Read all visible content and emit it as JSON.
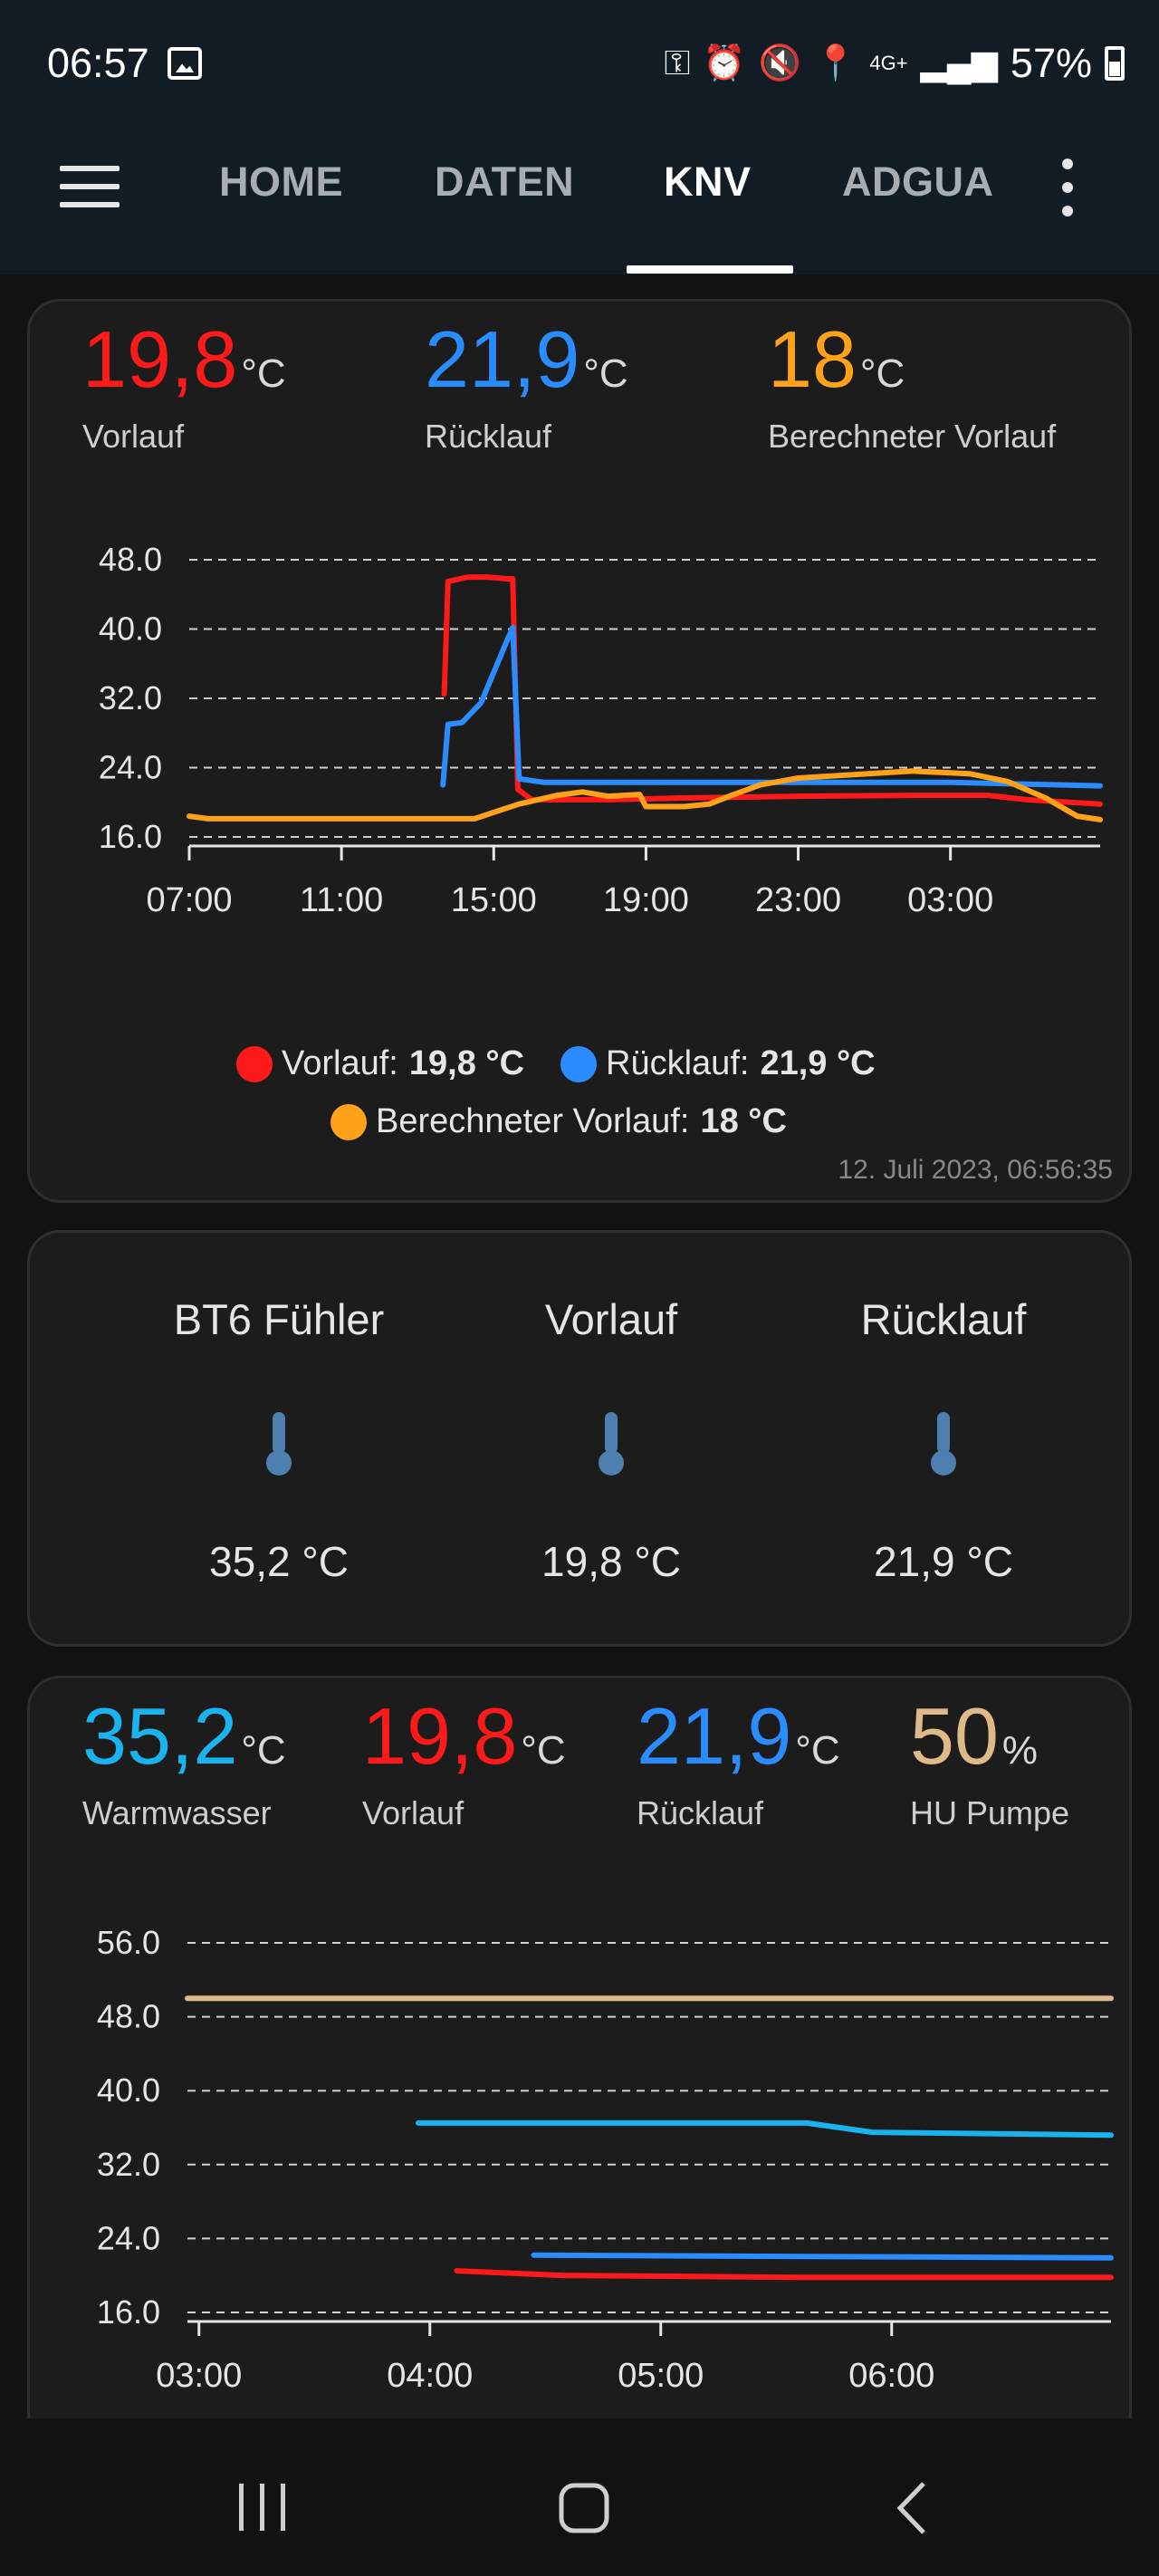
{
  "status_bar": {
    "time": "06:57",
    "icons": [
      "image-icon",
      "key-icon",
      "alarm-icon",
      "mute-icon",
      "location-icon",
      "signal-icon",
      "battery-icon"
    ],
    "network": "4G+",
    "battery": "57%"
  },
  "nav": {
    "tabs": [
      {
        "label": "HOME",
        "active": false
      },
      {
        "label": "DATEN",
        "active": false
      },
      {
        "label": "KNV",
        "active": true
      },
      {
        "label": "ADGUA",
        "active": false
      }
    ]
  },
  "card1": {
    "vorlauf": {
      "value": "19,8",
      "unit": "°C",
      "label": "Vorlauf",
      "color": "#ff1a1a"
    },
    "ruecklauf": {
      "value": "21,9",
      "unit": "°C",
      "label": "Rücklauf",
      "color": "#2b8cff"
    },
    "berechnet": {
      "value": "18",
      "unit": "°C",
      "label": "Berechneter Vorlauf",
      "color": "#ffa21a"
    },
    "legend": [
      {
        "name": "Vorlauf:",
        "value": "19,8 °C",
        "color": "#ff1a1a"
      },
      {
        "name": "Rücklauf:",
        "value": "21,9 °C",
        "color": "#2b8cff"
      },
      {
        "name": "Berechneter Vorlauf:",
        "value": "18 °C",
        "color": "#ffa21a"
      }
    ],
    "timestamp": "12. Juli 2023, 06:56:35"
  },
  "card2": {
    "entities": [
      {
        "name": "BT6 Fühler",
        "value": "35,2 °C"
      },
      {
        "name": "Vorlauf",
        "value": "19,8 °C"
      },
      {
        "name": "Rücklauf",
        "value": "21,9 °C"
      }
    ],
    "icon_color": "#4d7fb0"
  },
  "card3": {
    "warmwasser": {
      "value": "35,2",
      "unit": "°C",
      "label": "Warmwasser",
      "color": "#19b4f0"
    },
    "vorlauf": {
      "value": "19,8",
      "unit": "°C",
      "label": "Vorlauf",
      "color": "#ff1a1a"
    },
    "ruecklauf": {
      "value": "21,9",
      "unit": "°C",
      "label": "Rücklauf",
      "color": "#2b8cff"
    },
    "pumpe": {
      "value": "50",
      "unit": "%",
      "label": "HU Pumpe",
      "color": "#e0b98a"
    }
  },
  "chart_data": [
    {
      "type": "line",
      "ylim": [
        16,
        48
      ],
      "yticks": [
        "48.0",
        "40.0",
        "32.0",
        "24.0",
        "16.0"
      ],
      "xticks": [
        "07:00",
        "11:00",
        "15:00",
        "19:00",
        "23:00",
        "03:00"
      ],
      "x_range": [
        "07:00",
        "06:56"
      ],
      "grid": true,
      "series": [
        {
          "name": "Vorlauf",
          "color": "#ff1a1a",
          "points": [
            [
              "13:42",
              32.5
            ],
            [
              "13:48",
              45.5
            ],
            [
              "14:20",
              46
            ],
            [
              "14:50",
              46
            ],
            [
              "15:20",
              45.8
            ],
            [
              "15:30",
              45.8
            ],
            [
              "15:38",
              21.5
            ],
            [
              "16:00",
              20.3
            ],
            [
              "18:00",
              20.3
            ],
            [
              "20:00",
              20.5
            ],
            [
              "23:00",
              20.7
            ],
            [
              "02:00",
              20.8
            ],
            [
              "04:00",
              20.8
            ],
            [
              "05:00",
              20.3
            ],
            [
              "06:56",
              19.8
            ]
          ]
        },
        {
          "name": "Rücklauf",
          "color": "#2b8cff",
          "points": [
            [
              "13:40",
              22
            ],
            [
              "13:48",
              29
            ],
            [
              "14:10",
              29.2
            ],
            [
              "14:40",
              31.5
            ],
            [
              "15:00",
              35
            ],
            [
              "15:20",
              38.5
            ],
            [
              "15:30",
              40.2
            ],
            [
              "15:40",
              22.7
            ],
            [
              "16:20",
              22.3
            ],
            [
              "20:00",
              22.3
            ],
            [
              "00:00",
              22.3
            ],
            [
              "03:00",
              22.3
            ],
            [
              "05:00",
              22.1
            ],
            [
              "06:56",
              21.9
            ]
          ]
        },
        {
          "name": "Berechneter Vorlauf",
          "color": "#ffa21a",
          "points": [
            [
              "07:00",
              18.4
            ],
            [
              "07:30",
              18.1
            ],
            [
              "14:30",
              18.1
            ],
            [
              "15:15",
              19.2
            ],
            [
              "15:40",
              19.8
            ],
            [
              "16:40",
              20.8
            ],
            [
              "17:20",
              21.2
            ],
            [
              "18:00",
              20.7
            ],
            [
              "18:50",
              20.9
            ],
            [
              "19:00",
              19.5
            ],
            [
              "20:00",
              19.5
            ],
            [
              "20:40",
              19.8
            ],
            [
              "21:15",
              20.8
            ],
            [
              "22:00",
              22.0
            ],
            [
              "23:00",
              22.8
            ],
            [
              "00:30",
              23.2
            ],
            [
              "02:00",
              23.6
            ],
            [
              "03:30",
              23.3
            ],
            [
              "04:30",
              22.4
            ],
            [
              "05:30",
              20.5
            ],
            [
              "06:20",
              18.4
            ],
            [
              "06:56",
              18.0
            ]
          ]
        }
      ]
    },
    {
      "type": "line",
      "ylim": [
        16,
        56
      ],
      "yticks": [
        "56.0",
        "48.0",
        "40.0",
        "32.0",
        "24.0",
        "16.0"
      ],
      "xticks": [
        "03:00",
        "04:00",
        "05:00",
        "06:00"
      ],
      "x_range": [
        "02:57",
        "06:57"
      ],
      "grid": true,
      "series": [
        {
          "name": "HU Pumpe",
          "color": "#e0b98a",
          "points": [
            [
              "02:57",
              50
            ],
            [
              "06:57",
              50
            ]
          ]
        },
        {
          "name": "Warmwasser",
          "color": "#19b4f0",
          "points": [
            [
              "03:57",
              36.5
            ],
            [
              "05:38",
              36.5
            ],
            [
              "05:55",
              35.5
            ],
            [
              "06:57",
              35.2
            ]
          ]
        },
        {
          "name": "Rücklauf",
          "color": "#2b8cff",
          "points": [
            [
              "04:27",
              22.2
            ],
            [
              "06:57",
              21.9
            ]
          ]
        },
        {
          "name": "Vorlauf",
          "color": "#ff1a1a",
          "points": [
            [
              "04:07",
              20.5
            ],
            [
              "04:35",
              20.0
            ],
            [
              "05:35",
              19.8
            ],
            [
              "06:57",
              19.8
            ]
          ]
        }
      ]
    }
  ]
}
